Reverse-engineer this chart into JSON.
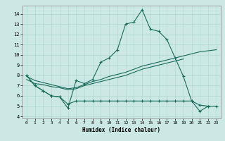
{
  "title": "",
  "xlabel": "Humidex (Indice chaleur)",
  "background_color": "#cce8e4",
  "grid_color": "#b0d8d0",
  "line_color": "#1a6b5a",
  "xlim": [
    -0.5,
    23.5
  ],
  "ylim": [
    3.8,
    14.8
  ],
  "xticks": [
    0,
    1,
    2,
    3,
    4,
    5,
    6,
    7,
    8,
    9,
    10,
    11,
    12,
    13,
    14,
    15,
    16,
    17,
    18,
    19,
    20,
    21,
    22,
    23
  ],
  "yticks": [
    4,
    5,
    6,
    7,
    8,
    9,
    10,
    11,
    12,
    13,
    14
  ],
  "line1_x": [
    0,
    1,
    2,
    3,
    4,
    5,
    6,
    7,
    8,
    9,
    10,
    11,
    12,
    13,
    14,
    15,
    16,
    17,
    18,
    19,
    20,
    21,
    22
  ],
  "line1_y": [
    8.0,
    7.0,
    6.5,
    6.0,
    5.9,
    4.8,
    7.5,
    7.2,
    7.6,
    9.3,
    9.7,
    10.5,
    13.0,
    13.2,
    14.4,
    12.5,
    12.3,
    11.5,
    9.7,
    7.9,
    5.5,
    4.5,
    5.0
  ],
  "line2_x": [
    0,
    1,
    2,
    3,
    4,
    5,
    6,
    7,
    8,
    9,
    10,
    11,
    12,
    13,
    14,
    15,
    16,
    17,
    18,
    19
  ],
  "line2_y": [
    7.6,
    7.2,
    7.1,
    6.9,
    6.8,
    6.6,
    6.7,
    7.0,
    7.2,
    7.4,
    7.6,
    7.8,
    8.0,
    8.3,
    8.6,
    8.8,
    9.0,
    9.2,
    9.4,
    9.6
  ],
  "line3_x": [
    0,
    1,
    2,
    3,
    4,
    5,
    6,
    7,
    8,
    9,
    10,
    11,
    12,
    13,
    14,
    15,
    16,
    17,
    18,
    19,
    20,
    21,
    22,
    23
  ],
  "line3_y": [
    7.9,
    7.5,
    7.3,
    7.1,
    6.9,
    6.7,
    6.8,
    7.1,
    7.4,
    7.6,
    7.9,
    8.1,
    8.3,
    8.6,
    8.9,
    9.1,
    9.3,
    9.5,
    9.7,
    9.9,
    10.1,
    10.3,
    10.4,
    10.5
  ],
  "line4_x": [
    0,
    1,
    2,
    3,
    4,
    5,
    6,
    7,
    8,
    9,
    10,
    11,
    12,
    13,
    14,
    15,
    16,
    17,
    18,
    19,
    20,
    21,
    22,
    23
  ],
  "line4_y": [
    8.0,
    7.0,
    6.5,
    6.0,
    5.9,
    5.2,
    5.5,
    5.5,
    5.5,
    5.5,
    5.5,
    5.5,
    5.5,
    5.5,
    5.5,
    5.5,
    5.5,
    5.5,
    5.5,
    5.5,
    5.5,
    5.1,
    5.0,
    5.0
  ]
}
